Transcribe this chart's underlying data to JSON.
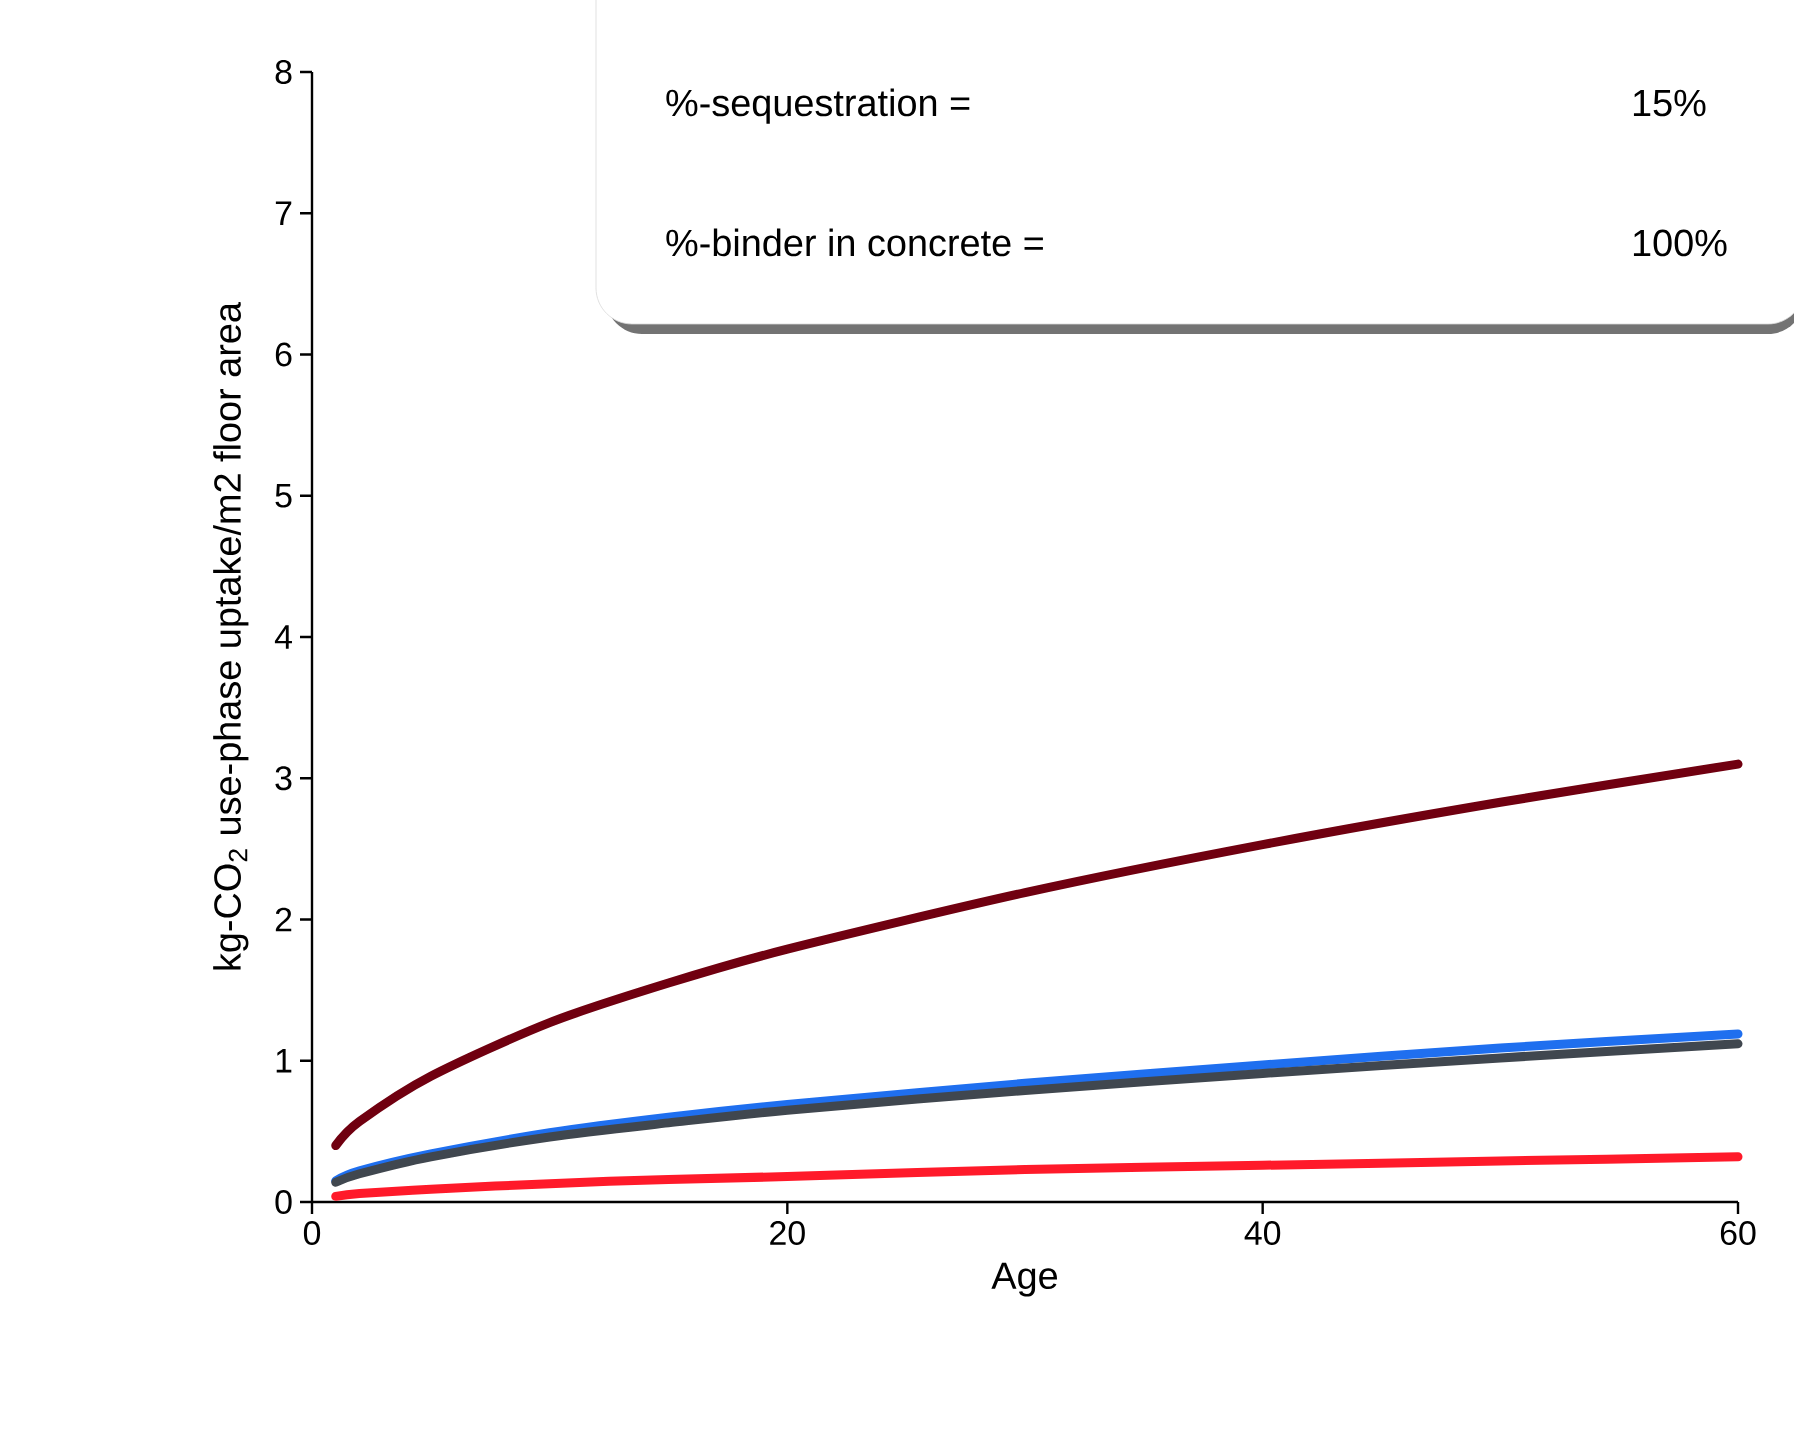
{
  "chart_data": {
    "type": "line",
    "xlabel": "Age",
    "ylabel": "kg-CO$_{2}$ use-phase uptake/m2 floor area",
    "annotations": [
      "%-sequestration =",
      "15%",
      "%-binder in concrete =",
      "100%"
    ],
    "xlim": [
      0,
      60
    ],
    "ylim": [
      0,
      8
    ],
    "xticks": [
      0,
      20,
      40,
      60
    ],
    "yticks": [
      0,
      1,
      2,
      3,
      4,
      5,
      6,
      7,
      8
    ],
    "grid": false,
    "marker": "none",
    "line_style": "solid",
    "x": [
      1,
      2,
      5,
      10,
      15,
      20,
      30,
      40,
      50,
      60
    ],
    "series": [
      {
        "color": "#700010",
        "values": [
          0.4,
          0.57,
          0.89,
          1.27,
          1.55,
          1.79,
          2.19,
          2.53,
          2.83,
          3.1
        ]
      },
      {
        "color": "#1f6fef",
        "values": [
          0.15,
          0.22,
          0.34,
          0.49,
          0.6,
          0.69,
          0.84,
          0.97,
          1.09,
          1.19
        ]
      },
      {
        "color": "#40474f",
        "values": [
          0.14,
          0.2,
          0.32,
          0.46,
          0.56,
          0.65,
          0.79,
          0.91,
          1.02,
          1.12
        ]
      },
      {
        "color": "#ff1a2a",
        "values": [
          0.04,
          0.06,
          0.09,
          0.13,
          0.16,
          0.18,
          0.23,
          0.26,
          0.29,
          0.32
        ]
      }
    ]
  }
}
